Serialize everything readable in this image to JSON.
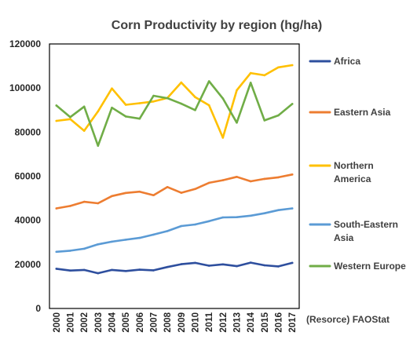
{
  "chart_data": {
    "type": "line",
    "title": "Corn Productivity by region (hg/ha)",
    "source_note": "(Resorce) FAOStat",
    "x": [
      "2000",
      "2001",
      "2002",
      "2003",
      "2004",
      "2005",
      "2006",
      "2007",
      "2008",
      "2009",
      "2010",
      "2011",
      "2012",
      "2013",
      "2014",
      "2015",
      "2016",
      "2017"
    ],
    "ylim": [
      0,
      120000
    ],
    "yticks": [
      "0",
      "20000",
      "40000",
      "60000",
      "80000",
      "100000",
      "120000"
    ],
    "grid": false,
    "legend_position": "right",
    "series": [
      {
        "name": "Africa",
        "color": "#2e4f9e",
        "values": [
          18000,
          17200,
          17500,
          16000,
          17500,
          17000,
          17600,
          17300,
          18800,
          20100,
          20700,
          19400,
          20000,
          19200,
          20800,
          19600,
          19100,
          20700
        ]
      },
      {
        "name": "Eastern Asia",
        "color": "#ed7d31",
        "values": [
          45400,
          46500,
          48400,
          47700,
          51000,
          52400,
          53000,
          51400,
          55100,
          52500,
          54200,
          57000,
          58200,
          59700,
          57700,
          58800,
          59500,
          60800
        ]
      },
      {
        "name": "Northern America",
        "color": "#ffc000",
        "values": [
          85100,
          85900,
          80600,
          89400,
          99800,
          92400,
          93100,
          93900,
          95500,
          102500,
          95900,
          92200,
          77500,
          99000,
          106800,
          105800,
          109400,
          110400
        ]
      },
      {
        "name": "South-Eastern Asia",
        "color": "#5b9bd5",
        "values": [
          25700,
          26200,
          27100,
          29100,
          30300,
          31200,
          32000,
          33500,
          35100,
          37400,
          38100,
          39600,
          41300,
          41400,
          42100,
          43200,
          44600,
          45400
        ]
      },
      {
        "name": "Western Europe",
        "color": "#70ad47",
        "values": [
          92100,
          86800,
          91600,
          73800,
          91100,
          87100,
          86100,
          96500,
          95400,
          92900,
          90000,
          103100,
          95300,
          84300,
          102400,
          85300,
          87600,
          92800
        ]
      }
    ]
  }
}
